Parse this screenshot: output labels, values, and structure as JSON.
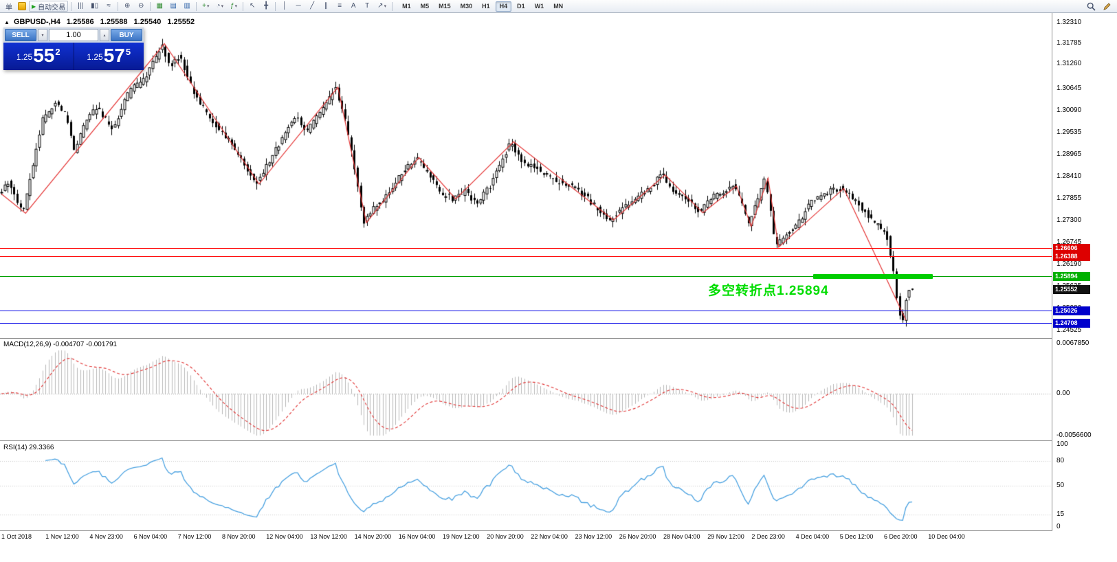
{
  "toolbar": {
    "order_label": "单",
    "autotrade_label": "自动交易",
    "autotrade_icon": "▶",
    "timeframes": [
      "M1",
      "M5",
      "M15",
      "M30",
      "H1",
      "H4",
      "D1",
      "W1",
      "MN"
    ],
    "active_timeframe": "H4",
    "icons": [
      {
        "sep": true
      },
      {
        "name": "bar-chart-icon",
        "glyph": "|||"
      },
      {
        "name": "candlestick-chart-icon",
        "glyph": "▮▯"
      },
      {
        "name": "line-chart-icon",
        "glyph": "≈"
      },
      {
        "sep": true
      },
      {
        "name": "zoom-in-icon",
        "glyph": "⊕"
      },
      {
        "name": "zoom-out-icon",
        "glyph": "⊖"
      },
      {
        "sep": true
      },
      {
        "name": "new-chart-icon",
        "glyph": "▦",
        "color": "#2e8b2e"
      },
      {
        "name": "chart-profiles-icon",
        "glyph": "▤",
        "color": "#2d62a8"
      },
      {
        "name": "tile-windows-icon",
        "glyph": "▥",
        "color": "#2d62a8"
      },
      {
        "sep": true
      },
      {
        "name": "add-chart-icon",
        "glyph": "+",
        "color": "#2e8b2e",
        "caret": true
      },
      {
        "name": "periods-icon",
        "glyph": "◔",
        "caret": true
      },
      {
        "name": "indicators-icon",
        "glyph": "ƒ",
        "color": "#2e8b2e",
        "caret": true
      },
      {
        "sep": true
      },
      {
        "name": "cursor-icon",
        "glyph": "↖"
      },
      {
        "name": "crosshair-icon",
        "glyph": "╋"
      },
      {
        "sep": true
      },
      {
        "name": "vertical-line-icon",
        "glyph": "│"
      },
      {
        "name": "horizontal-line-icon",
        "glyph": "─"
      },
      {
        "name": "trendline-icon",
        "glyph": "╱"
      },
      {
        "name": "channel-icon",
        "glyph": "∥"
      },
      {
        "name": "fibonacci-icon",
        "glyph": "≡"
      },
      {
        "name": "text-icon",
        "glyph": "A"
      },
      {
        "name": "label-icon",
        "glyph": "T"
      },
      {
        "name": "arrows-icon",
        "glyph": "↗",
        "caret": true
      },
      {
        "sep": true
      }
    ]
  },
  "symbol_header": {
    "arrow": "▲",
    "symbol": "GBPUSD-,H4",
    "open": "1.25586",
    "high": "1.25588",
    "low": "1.25540",
    "close": "1.25552"
  },
  "trade_panel": {
    "sell_label": "SELL",
    "buy_label": "BUY",
    "volume": "1.00",
    "spinner_down": "▾",
    "spinner_up": "▴",
    "sell_price": {
      "prefix": "1.25",
      "big": "55",
      "sup": "2"
    },
    "buy_price": {
      "prefix": "1.25",
      "big": "57",
      "sup": "5"
    }
  },
  "annotation": {
    "text": "多空转折点1.25894",
    "color": "#00dd00"
  },
  "chart_data": {
    "main": {
      "type": "candlestick",
      "symbol": "GBPUSD",
      "timeframe": "H4",
      "ylim": [
        1.24525,
        1.3231
      ],
      "current": {
        "open": 1.25586,
        "high": 1.25588,
        "low": 1.2554,
        "close": 1.25552
      },
      "candle_count": 290,
      "last_candle_frac": 0.866,
      "y_ticks": [
        "1.32310",
        "1.31785",
        "1.31260",
        "1.30645",
        "1.30090",
        "1.29535",
        "1.28965",
        "1.28410",
        "1.27855",
        "1.27300",
        "1.26745",
        "1.26190",
        "1.25635",
        "1.25080",
        "1.24525"
      ],
      "x_labels": [
        "1 Oct 2018",
        "1 Nov 12:00",
        "4 Nov 23:00",
        "6 Nov 04:00",
        "7 Nov 12:00",
        "8 Nov 20:00",
        "12 Nov 04:00",
        "13 Nov 12:00",
        "14 Nov 20:00",
        "16 Nov 04:00",
        "19 Nov 12:00",
        "20 Nov 20:00",
        "22 Nov 04:00",
        "23 Nov 12:00",
        "26 Nov 20:00",
        "28 Nov 04:00",
        "29 Nov 12:00",
        "2 Dec 23:00",
        "4 Dec 04:00",
        "5 Dec 12:00",
        "6 Dec 20:00",
        "10 Dec 04:00"
      ],
      "zigzag_color": "#e43333",
      "zigzag": [
        [
          0.0,
          1.2798
        ],
        [
          0.023,
          1.2749
        ],
        [
          0.155,
          1.3178
        ],
        [
          0.245,
          1.2823
        ],
        [
          0.32,
          1.3068
        ],
        [
          0.347,
          1.2725
        ],
        [
          0.397,
          1.289
        ],
        [
          0.432,
          1.2785
        ],
        [
          0.487,
          1.293
        ],
        [
          0.582,
          1.2732
        ],
        [
          0.631,
          1.2846
        ],
        [
          0.667,
          1.275
        ],
        [
          0.699,
          1.2818
        ],
        [
          0.713,
          1.2716
        ],
        [
          0.729,
          1.2838
        ],
        [
          0.739,
          1.2663
        ],
        [
          0.801,
          1.2812
        ],
        [
          0.86,
          1.2479
        ]
      ],
      "price_path": [
        [
          0.0,
          1.2795
        ],
        [
          0.008,
          1.283
        ],
        [
          0.023,
          1.2749
        ],
        [
          0.042,
          1.2985
        ],
        [
          0.055,
          1.303
        ],
        [
          0.065,
          1.2995
        ],
        [
          0.072,
          1.2908
        ],
        [
          0.085,
          1.2995
        ],
        [
          0.095,
          1.3015
        ],
        [
          0.108,
          1.296
        ],
        [
          0.125,
          1.306
        ],
        [
          0.14,
          1.309
        ],
        [
          0.155,
          1.3175
        ],
        [
          0.163,
          1.312
        ],
        [
          0.172,
          1.3148
        ],
        [
          0.185,
          1.306
        ],
        [
          0.2,
          1.299
        ],
        [
          0.22,
          1.293
        ],
        [
          0.245,
          1.2823
        ],
        [
          0.258,
          1.288
        ],
        [
          0.27,
          1.294
        ],
        [
          0.283,
          1.3
        ],
        [
          0.292,
          1.295
        ],
        [
          0.308,
          1.301
        ],
        [
          0.32,
          1.3068
        ],
        [
          0.33,
          1.298
        ],
        [
          0.34,
          1.284
        ],
        [
          0.347,
          1.2725
        ],
        [
          0.357,
          1.2762
        ],
        [
          0.368,
          1.2788
        ],
        [
          0.383,
          1.2848
        ],
        [
          0.397,
          1.289
        ],
        [
          0.408,
          1.2852
        ],
        [
          0.42,
          1.28
        ],
        [
          0.432,
          1.2785
        ],
        [
          0.443,
          1.2805
        ],
        [
          0.455,
          1.2772
        ],
        [
          0.468,
          1.282
        ],
        [
          0.478,
          1.2878
        ],
        [
          0.487,
          1.293
        ],
        [
          0.497,
          1.2878
        ],
        [
          0.512,
          1.2862
        ],
        [
          0.528,
          1.2832
        ],
        [
          0.543,
          1.2822
        ],
        [
          0.558,
          1.2792
        ],
        [
          0.572,
          1.2752
        ],
        [
          0.582,
          1.2732
        ],
        [
          0.597,
          1.2768
        ],
        [
          0.613,
          1.28
        ],
        [
          0.631,
          1.2846
        ],
        [
          0.643,
          1.2802
        ],
        [
          0.655,
          1.2782
        ],
        [
          0.667,
          1.275
        ],
        [
          0.678,
          1.2788
        ],
        [
          0.69,
          1.2802
        ],
        [
          0.699,
          1.2818
        ],
        [
          0.706,
          1.2782
        ],
        [
          0.713,
          1.2716
        ],
        [
          0.721,
          1.2778
        ],
        [
          0.729,
          1.2838
        ],
        [
          0.734,
          1.2752
        ],
        [
          0.739,
          1.2663
        ],
        [
          0.748,
          1.2692
        ],
        [
          0.76,
          1.2722
        ],
        [
          0.773,
          1.278
        ],
        [
          0.786,
          1.28
        ],
        [
          0.801,
          1.2812
        ],
        [
          0.814,
          1.2782
        ],
        [
          0.824,
          1.2752
        ],
        [
          0.834,
          1.2722
        ],
        [
          0.844,
          1.27
        ],
        [
          0.851,
          1.26
        ],
        [
          0.856,
          1.25
        ],
        [
          0.86,
          1.2479
        ],
        [
          0.863,
          1.253
        ],
        [
          0.866,
          1.2555
        ]
      ],
      "levels": [
        {
          "price": 1.26606,
          "line_color": "#ff0000",
          "tag_bg": "#dd0000",
          "label": "1.26606"
        },
        {
          "price": 1.26388,
          "line_color": "#ff0000",
          "tag_bg": "#dd0000",
          "label": "1.26388"
        },
        {
          "price": 1.25894,
          "line_color": "#00a000",
          "tag_bg": "#00b000",
          "label": "1.25894",
          "segment": [
            0.773,
            0.887
          ],
          "segment_color": "#00ce00"
        },
        {
          "price": 1.25552,
          "line_color": null,
          "tag_bg": "#111111",
          "label": "1.25552"
        },
        {
          "price": 1.25026,
          "line_color": "#0000e6",
          "tag_bg": "#0000cc",
          "label": "1.25026"
        },
        {
          "price": 1.24708,
          "line_color": "#0000e6",
          "tag_bg": "#0000cc",
          "label": "1.24708"
        }
      ]
    },
    "macd": {
      "type": "line",
      "label": "MACD(12,26,9) -0.004707 -0.001791",
      "params": [
        12,
        26,
        9
      ],
      "value": -0.004707,
      "signal": -0.001791,
      "ylim": [
        -0.00566,
        0.006785
      ],
      "y_ticks": [
        {
          "v": 0.006785,
          "t": "0.0067850"
        },
        {
          "v": 0,
          "t": "0.00"
        },
        {
          "v": -0.00566,
          "t": "-0.0056600"
        }
      ],
      "histogram_color": "#b9b9b9",
      "signal_color": "#e03030"
    },
    "rsi": {
      "type": "line",
      "label": "RSI(14) 29.3366",
      "period": 14,
      "value": 29.3366,
      "ylim": [
        0,
        100
      ],
      "levels": [
        100,
        80,
        50,
        15,
        0
      ],
      "line_color": "#47a0e0"
    }
  }
}
